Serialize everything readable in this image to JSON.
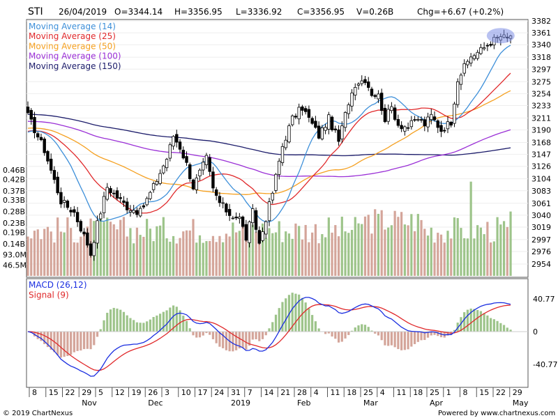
{
  "header": {
    "symbol": "STI",
    "date": "26/04/2019",
    "open": "O=3344.14",
    "high": "H=3356.95",
    "low": "L=3336.92",
    "close": "C=3356.95",
    "volume": "V=0.26B",
    "change": "Chg=+6.67 (+0.2%)"
  },
  "footer": {
    "copyright": "© 2019 ChartNexus",
    "powered": "Powered by www.chartnexus.com"
  },
  "colors": {
    "up_volume": "#9dc48a",
    "down_volume": "#d4a59a",
    "ma14": "#3d8fd9",
    "ma25": "#e0282a",
    "ma50": "#f5a020",
    "ma100": "#9a2fd6",
    "ma150": "#1b1b6a",
    "macd": "#1a2ee0",
    "signal": "#e0282a",
    "highlight": "#7f8fe6"
  },
  "chart_data": {
    "type": "candlestick",
    "title": "STI",
    "price_ylim": [
      2940,
      3390
    ],
    "price_ticks": [
      3382,
      3361,
      3340,
      3318,
      3297,
      3275,
      3254,
      3233,
      3211,
      3190,
      3168,
      3147,
      3126,
      3104,
      3083,
      3061,
      3040,
      3019,
      2997,
      2976,
      2954
    ],
    "volume_ticks": [
      "0.46B",
      "0.42B",
      "0.37B",
      "0.33B",
      "0.28B",
      "0.23B",
      "0.19B",
      "0.14B",
      "93.0M",
      "46.5M"
    ],
    "volume_tick_values": [
      0.46,
      0.42,
      0.37,
      0.33,
      0.28,
      0.23,
      0.19,
      0.14,
      0.093,
      0.0465
    ],
    "macd_ticks": [
      "40.77",
      "0",
      "-40.77"
    ],
    "macd_tick_values": [
      40.77,
      0,
      -40.77
    ],
    "x_day_ticks": [
      "8",
      "15",
      "22",
      "29",
      "5",
      "12",
      "19",
      "26",
      "3",
      "10",
      "17",
      "24",
      "31",
      "7",
      "14",
      "21",
      "28",
      "4",
      "11",
      "18",
      "25",
      "4",
      "11",
      "18",
      "25",
      "1",
      "8",
      "15",
      "22",
      "29"
    ],
    "x_month_labels": [
      "Nov",
      "Dec",
      "2019",
      "Feb",
      "Mar",
      "Apr",
      "May"
    ],
    "x_month_after_tick": [
      3,
      7,
      12,
      16,
      20,
      24,
      29
    ],
    "legend": [
      {
        "name": "Moving Average (14)",
        "key": "ma14"
      },
      {
        "name": "Moving Average (25)",
        "key": "ma25"
      },
      {
        "name": "Moving Average (50)",
        "key": "ma50"
      },
      {
        "name": "Moving Average (100)",
        "key": "ma100"
      },
      {
        "name": "Moving Average (150)",
        "key": "ma150"
      }
    ],
    "macd_legend": [
      {
        "name": "MACD (26,12)",
        "key": "macd"
      },
      {
        "name": "Signal (9)",
        "key": "signal"
      }
    ],
    "close_anchors": [
      [
        0,
        3215
      ],
      [
        5,
        3155
      ],
      [
        10,
        3065
      ],
      [
        14,
        3045
      ],
      [
        18,
        2990
      ],
      [
        19,
        2972
      ],
      [
        21,
        3025
      ],
      [
        24,
        3090
      ],
      [
        27,
        3072
      ],
      [
        30,
        3055
      ],
      [
        34,
        3045
      ],
      [
        38,
        3090
      ],
      [
        42,
        3140
      ],
      [
        44,
        3180
      ],
      [
        46,
        3160
      ],
      [
        48,
        3130
      ],
      [
        50,
        3090
      ],
      [
        54,
        3140
      ],
      [
        56,
        3085
      ],
      [
        58,
        3062
      ],
      [
        61,
        3042
      ],
      [
        64,
        3035
      ],
      [
        66,
        3000
      ],
      [
        68,
        3045
      ],
      [
        70,
        2990
      ],
      [
        72,
        3035
      ],
      [
        74,
        3080
      ],
      [
        77,
        3162
      ],
      [
        80,
        3210
      ],
      [
        83,
        3230
      ],
      [
        86,
        3200
      ],
      [
        88,
        3180
      ],
      [
        91,
        3210
      ],
      [
        94,
        3170
      ],
      [
        97,
        3240
      ],
      [
        99,
        3272
      ],
      [
        102,
        3280
      ],
      [
        104,
        3255
      ],
      [
        106,
        3250
      ],
      [
        108,
        3210
      ],
      [
        110,
        3230
      ],
      [
        112,
        3200
      ],
      [
        115,
        3195
      ],
      [
        118,
        3210
      ],
      [
        120,
        3200
      ],
      [
        122,
        3215
      ],
      [
        125,
        3190
      ],
      [
        128,
        3205
      ],
      [
        130,
        3280
      ],
      [
        132,
        3300
      ],
      [
        134,
        3320
      ],
      [
        137,
        3330
      ],
      [
        140,
        3345
      ],
      [
        143,
        3355
      ],
      [
        145,
        3350
      ],
      [
        146,
        3357
      ]
    ],
    "ma_windows": {
      "ma14": 14,
      "ma25": 25,
      "ma50": 50,
      "ma100": 100,
      "ma150": 150
    },
    "volume_base": 0.2,
    "volume_spike": {
      "index": 134,
      "value": 0.41
    }
  }
}
